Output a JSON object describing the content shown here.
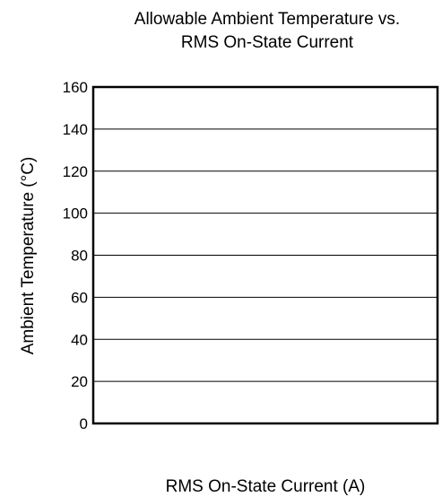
{
  "chart_data": {
    "type": "line",
    "title_lines": [
      "Allowable Ambient Temperature vs.",
      "RMS On-State Current"
    ],
    "xlabel": "RMS On-State Current  (A)",
    "ylabel": "Ambient Temperature  (°C)",
    "ylim": [
      0,
      160
    ],
    "yticks": [
      0,
      20,
      40,
      60,
      80,
      100,
      120,
      140,
      160
    ],
    "xticks": [],
    "grid": "horizontal",
    "series": []
  }
}
